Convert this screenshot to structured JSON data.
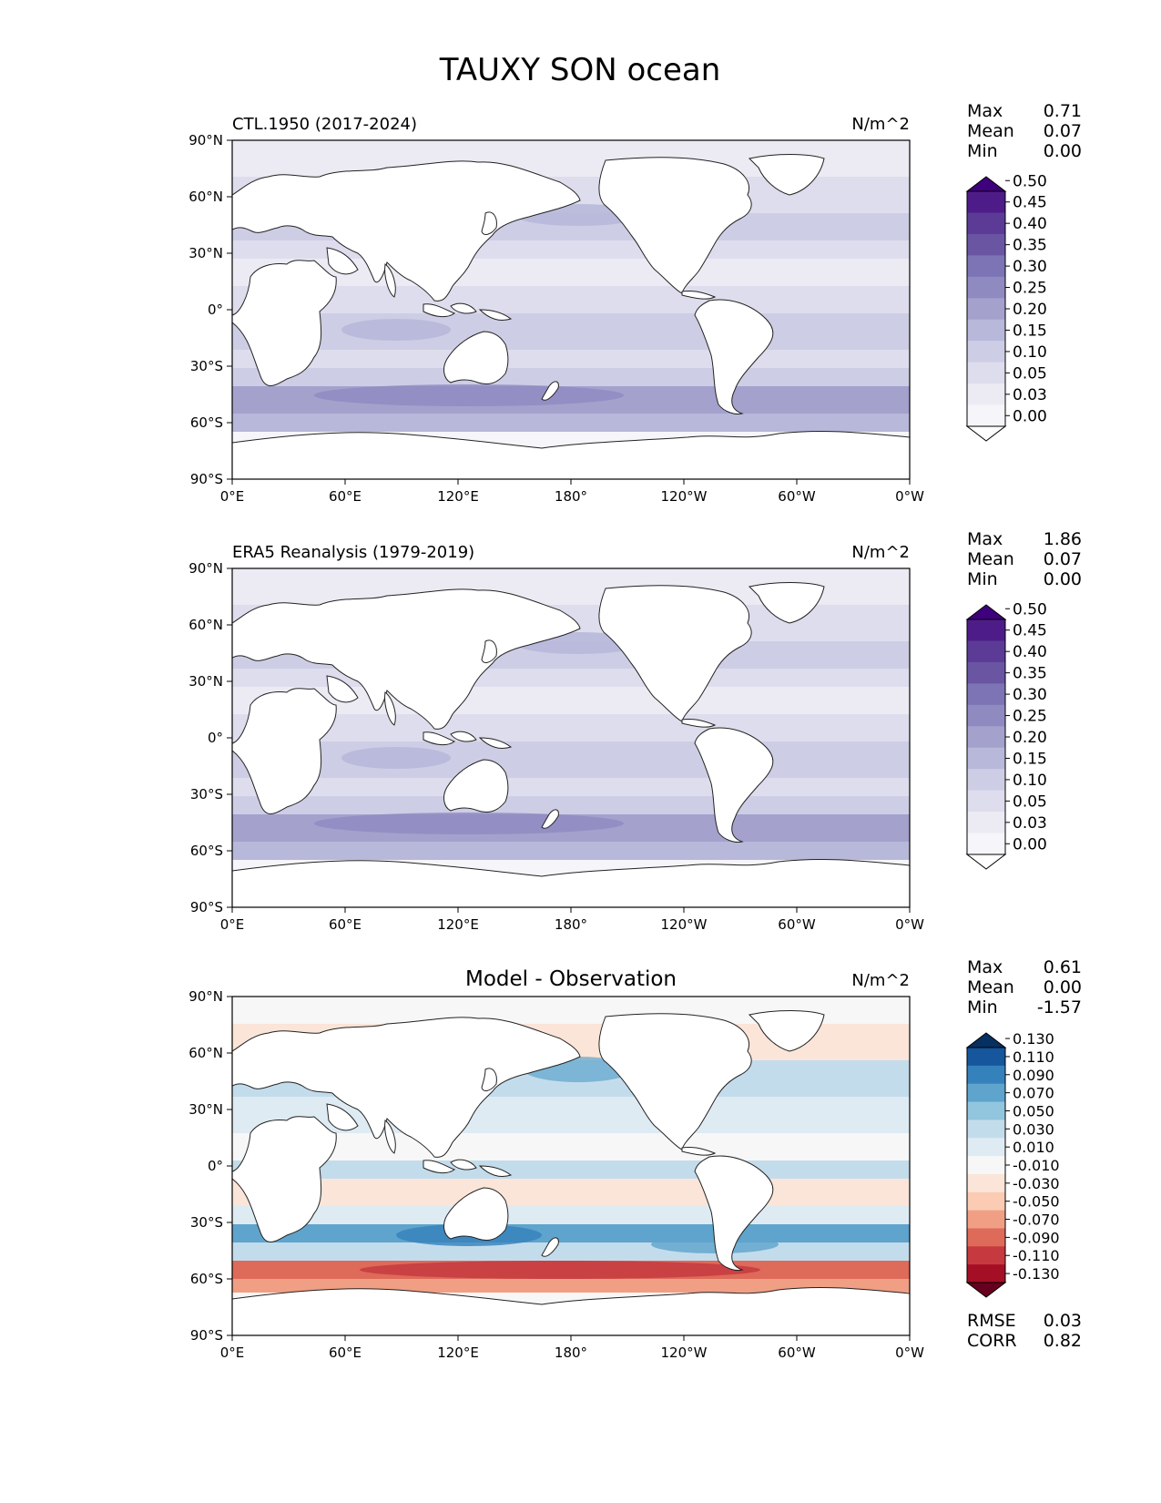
{
  "figure": {
    "title": "TAUXY SON ocean"
  },
  "axes": {
    "lat_ticks": [
      "90°N",
      "60°N",
      "30°N",
      "0°",
      "30°S",
      "60°S",
      "90°S"
    ],
    "lon_ticks": [
      "0°E",
      "60°E",
      "120°E",
      "180°",
      "120°W",
      "60°W",
      "0°W"
    ]
  },
  "chart_data": [
    {
      "type": "heatmap",
      "title": "CTL.1950 (2017-2024)",
      "units": "N/m^2",
      "stats": [
        {
          "label": "Max",
          "value": "0.71"
        },
        {
          "label": "Mean",
          "value": "0.07"
        },
        {
          "label": "Min",
          "value": "0.00"
        }
      ],
      "colorbar": {
        "levels": [
          "0.00",
          "0.03",
          "0.05",
          "0.10",
          "0.15",
          "0.20",
          "0.25",
          "0.30",
          "0.35",
          "0.40",
          "0.45",
          "0.50"
        ],
        "colors": [
          "#ffffff",
          "#f6f5fa",
          "#ecebf4",
          "#dedded",
          "#cdcde5",
          "#b8b8da",
          "#a4a1cd",
          "#8f8ac0",
          "#7c74b4",
          "#6a55a3",
          "#5c3b96",
          "#4e1c88",
          "#3f007d"
        ]
      }
    },
    {
      "type": "heatmap",
      "title": "ERA5 Reanalysis (1979-2019)",
      "units": "N/m^2",
      "stats": [
        {
          "label": "Max",
          "value": "1.86"
        },
        {
          "label": "Mean",
          "value": "0.07"
        },
        {
          "label": "Min",
          "value": "0.00"
        }
      ],
      "colorbar": {
        "levels": [
          "0.00",
          "0.03",
          "0.05",
          "0.10",
          "0.15",
          "0.20",
          "0.25",
          "0.30",
          "0.35",
          "0.40",
          "0.45",
          "0.50"
        ],
        "colors": [
          "#ffffff",
          "#f6f5fa",
          "#ecebf4",
          "#dedded",
          "#cdcde5",
          "#b8b8da",
          "#a4a1cd",
          "#8f8ac0",
          "#7c74b4",
          "#6a55a3",
          "#5c3b96",
          "#4e1c88",
          "#3f007d"
        ]
      }
    },
    {
      "type": "heatmap",
      "title": "Model - Observation",
      "units": "N/m^2",
      "stats": [
        {
          "label": "Max",
          "value": "0.61"
        },
        {
          "label": "Mean",
          "value": "0.00"
        },
        {
          "label": "Min",
          "value": "-1.57"
        }
      ],
      "footer_stats": [
        {
          "label": "RMSE",
          "value": "0.03"
        },
        {
          "label": "CORR",
          "value": "0.82"
        }
      ],
      "colorbar": {
        "levels": [
          "-0.130",
          "-0.110",
          "-0.090",
          "-0.070",
          "-0.050",
          "-0.030",
          "-0.010",
          "0.010",
          "0.030",
          "0.050",
          "0.070",
          "0.090",
          "0.110",
          "0.130"
        ],
        "colors": [
          "#67001f",
          "#a50f26",
          "#c6393e",
          "#de6a5a",
          "#f09f84",
          "#fbcbb3",
          "#fbe5d8",
          "#f7f7f7",
          "#deebf3",
          "#c3dcec",
          "#92c5de",
          "#5ea4cc",
          "#3581bc",
          "#15569c",
          "#053061"
        ]
      }
    }
  ]
}
